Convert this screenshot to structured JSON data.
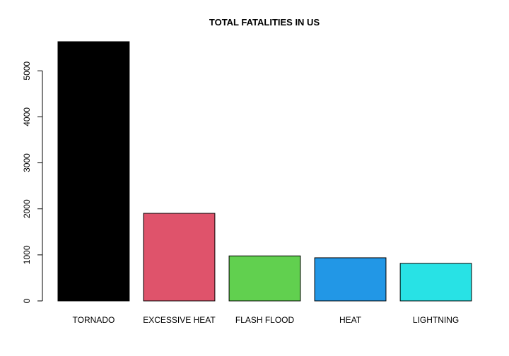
{
  "chart_data": {
    "type": "bar",
    "title": "TOTAL FATALITIES IN US",
    "xlabel": "",
    "ylabel": "",
    "categories": [
      "TORNADO",
      "EXCESSIVE HEAT",
      "FLASH FLOOD",
      "HEAT",
      "LIGHTNING"
    ],
    "values": [
      5633,
      1903,
      978,
      937,
      816
    ],
    "colors": [
      "#000000",
      "#DF536B",
      "#61D04F",
      "#2297E6",
      "#28E2E5"
    ],
    "ylim": [
      0,
      5633
    ],
    "yticks": [
      0,
      1000,
      2000,
      3000,
      4000,
      5000
    ],
    "grid": false,
    "legend": "none"
  }
}
